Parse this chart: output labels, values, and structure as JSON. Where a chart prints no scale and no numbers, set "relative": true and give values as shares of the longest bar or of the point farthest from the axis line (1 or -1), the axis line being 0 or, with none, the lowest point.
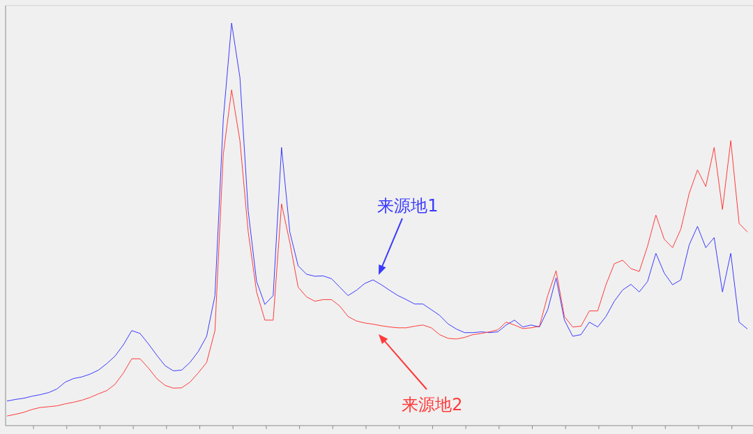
{
  "chart_data": {
    "type": "line",
    "relative": true,
    "categories": [
      null,
      null,
      null,
      null,
      null,
      null,
      null,
      null,
      null,
      null,
      null,
      null,
      null,
      null,
      null,
      null,
      null,
      null,
      null,
      null,
      null,
      null,
      null,
      null,
      null,
      null,
      null,
      null,
      null,
      null,
      null,
      null,
      null,
      null,
      null,
      null,
      null,
      null,
      null,
      null,
      null,
      null,
      null,
      null,
      null,
      null,
      null,
      null,
      null,
      null,
      null,
      null,
      null,
      null,
      null,
      null,
      null,
      null,
      null,
      null,
      null,
      null,
      null,
      null,
      null,
      null,
      null,
      null,
      null,
      null,
      null,
      null,
      null,
      null,
      null,
      null,
      null,
      null,
      null,
      null,
      null,
      null,
      null,
      null,
      null,
      null,
      null,
      null,
      null,
      null
    ],
    "series": [
      {
        "name": "来源地1",
        "color": "#3a3aff",
        "values": [
          0.061,
          0.065,
          0.068,
          0.073,
          0.077,
          0.082,
          0.091,
          0.108,
          0.117,
          0.121,
          0.128,
          0.138,
          0.154,
          0.173,
          0.201,
          0.236,
          0.229,
          0.203,
          0.175,
          0.149,
          0.136,
          0.138,
          0.157,
          0.184,
          0.222,
          0.323,
          0.76,
          1.0,
          0.865,
          0.533,
          0.358,
          0.301,
          0.323,
          0.691,
          0.481,
          0.397,
          0.376,
          0.371,
          0.372,
          0.365,
          0.344,
          0.323,
          0.336,
          0.353,
          0.362,
          0.35,
          0.336,
          0.323,
          0.313,
          0.302,
          0.302,
          0.288,
          0.274,
          0.253,
          0.24,
          0.231,
          0.231,
          0.233,
          0.231,
          0.233,
          0.25,
          0.262,
          0.245,
          0.25,
          0.245,
          0.288,
          0.367,
          0.262,
          0.222,
          0.226,
          0.257,
          0.245,
          0.271,
          0.309,
          0.337,
          0.351,
          0.332,
          0.358,
          0.428,
          0.379,
          0.35,
          0.362,
          0.449,
          0.495,
          0.442,
          0.467,
          0.332,
          0.428,
          0.257,
          0.24
        ]
      },
      {
        "name": "来源地2",
        "color": "#ff3a3a",
        "values": [
          0.024,
          0.028,
          0.033,
          0.04,
          0.045,
          0.047,
          0.049,
          0.054,
          0.058,
          0.063,
          0.07,
          0.079,
          0.087,
          0.103,
          0.131,
          0.166,
          0.166,
          0.143,
          0.117,
          0.1,
          0.093,
          0.094,
          0.108,
          0.131,
          0.157,
          0.236,
          0.673,
          0.834,
          0.708,
          0.481,
          0.332,
          0.262,
          0.262,
          0.551,
          0.455,
          0.344,
          0.32,
          0.309,
          0.313,
          0.313,
          0.297,
          0.271,
          0.26,
          0.255,
          0.252,
          0.248,
          0.245,
          0.243,
          0.243,
          0.247,
          0.25,
          0.243,
          0.226,
          0.217,
          0.215,
          0.219,
          0.226,
          0.229,
          0.233,
          0.238,
          0.257,
          0.25,
          0.241,
          0.243,
          0.247,
          0.323,
          0.385,
          0.271,
          0.245,
          0.247,
          0.285,
          0.285,
          0.35,
          0.402,
          0.411,
          0.39,
          0.383,
          0.446,
          0.523,
          0.463,
          0.442,
          0.488,
          0.577,
          0.635,
          0.594,
          0.691,
          0.537,
          0.708,
          0.502,
          0.481
        ]
      }
    ]
  }
}
